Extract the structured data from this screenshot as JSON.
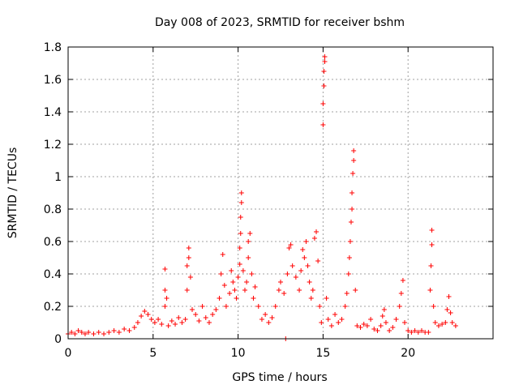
{
  "chart_data": {
    "type": "scatter",
    "title": "Day 008 of 2023, SRMTID for receiver bshm",
    "xlabel": "GPS time / hours",
    "ylabel": "SRMTID / TECUs",
    "xlim": [
      0,
      25
    ],
    "ylim": [
      0,
      1.8
    ],
    "xticks": [
      "0",
      "5",
      "10",
      "15",
      "20"
    ],
    "yticks": [
      "0",
      "0.2",
      "0.4",
      "0.6",
      "0.8",
      "1",
      "1.2",
      "1.4",
      "1.6",
      "1.8"
    ],
    "grid": true,
    "marker": "+",
    "color": "#ff0000",
    "series": [
      {
        "name": "SRMTID",
        "points": [
          [
            0.0,
            0.03
          ],
          [
            0.2,
            0.04
          ],
          [
            0.4,
            0.03
          ],
          [
            0.6,
            0.05
          ],
          [
            0.8,
            0.04
          ],
          [
            1.0,
            0.03
          ],
          [
            1.2,
            0.04
          ],
          [
            1.5,
            0.03
          ],
          [
            1.8,
            0.04
          ],
          [
            2.1,
            0.03
          ],
          [
            2.4,
            0.04
          ],
          [
            2.7,
            0.05
          ],
          [
            3.0,
            0.04
          ],
          [
            3.3,
            0.06
          ],
          [
            3.6,
            0.05
          ],
          [
            3.9,
            0.07
          ],
          [
            4.1,
            0.1
          ],
          [
            4.3,
            0.14
          ],
          [
            4.5,
            0.17
          ],
          [
            4.7,
            0.15
          ],
          [
            4.9,
            0.12
          ],
          [
            5.1,
            0.1
          ],
          [
            5.3,
            0.12
          ],
          [
            5.5,
            0.09
          ],
          [
            5.7,
            0.2
          ],
          [
            5.7,
            0.3
          ],
          [
            5.7,
            0.43
          ],
          [
            5.8,
            0.25
          ],
          [
            5.9,
            0.08
          ],
          [
            6.1,
            0.11
          ],
          [
            6.3,
            0.09
          ],
          [
            6.5,
            0.13
          ],
          [
            6.7,
            0.1
          ],
          [
            6.9,
            0.12
          ],
          [
            7.0,
            0.3
          ],
          [
            7.0,
            0.45
          ],
          [
            7.1,
            0.56
          ],
          [
            7.1,
            0.5
          ],
          [
            7.2,
            0.38
          ],
          [
            7.3,
            0.18
          ],
          [
            7.5,
            0.15
          ],
          [
            7.7,
            0.11
          ],
          [
            7.9,
            0.2
          ],
          [
            8.1,
            0.13
          ],
          [
            8.3,
            0.1
          ],
          [
            8.5,
            0.15
          ],
          [
            8.7,
            0.18
          ],
          [
            8.9,
            0.25
          ],
          [
            9.0,
            0.4
          ],
          [
            9.1,
            0.52
          ],
          [
            9.2,
            0.33
          ],
          [
            9.3,
            0.2
          ],
          [
            9.5,
            0.28
          ],
          [
            9.6,
            0.42
          ],
          [
            9.7,
            0.35
          ],
          [
            9.8,
            0.3
          ],
          [
            9.9,
            0.25
          ],
          [
            10.0,
            0.38
          ],
          [
            10.1,
            0.46
          ],
          [
            10.1,
            0.56
          ],
          [
            10.15,
            0.65
          ],
          [
            10.15,
            0.75
          ],
          [
            10.2,
            0.84
          ],
          [
            10.2,
            0.9
          ],
          [
            10.3,
            0.42
          ],
          [
            10.4,
            0.3
          ],
          [
            10.5,
            0.35
          ],
          [
            10.6,
            0.5
          ],
          [
            10.6,
            0.6
          ],
          [
            10.7,
            0.65
          ],
          [
            10.8,
            0.4
          ],
          [
            10.9,
            0.25
          ],
          [
            11.0,
            0.32
          ],
          [
            11.2,
            0.2
          ],
          [
            11.4,
            0.12
          ],
          [
            11.6,
            0.15
          ],
          [
            11.8,
            0.1
          ],
          [
            12.0,
            0.13
          ],
          [
            12.2,
            0.2
          ],
          [
            12.4,
            0.3
          ],
          [
            12.5,
            0.35
          ],
          [
            12.7,
            0.28
          ],
          [
            12.8,
            0.0
          ],
          [
            12.9,
            0.4
          ],
          [
            13.0,
            0.56
          ],
          [
            13.1,
            0.58
          ],
          [
            13.2,
            0.45
          ],
          [
            13.4,
            0.38
          ],
          [
            13.6,
            0.3
          ],
          [
            13.7,
            0.42
          ],
          [
            13.8,
            0.55
          ],
          [
            13.9,
            0.5
          ],
          [
            14.0,
            0.6
          ],
          [
            14.1,
            0.45
          ],
          [
            14.2,
            0.35
          ],
          [
            14.3,
            0.25
          ],
          [
            14.4,
            0.3
          ],
          [
            14.5,
            0.62
          ],
          [
            14.6,
            0.66
          ],
          [
            14.7,
            0.48
          ],
          [
            14.8,
            0.2
          ],
          [
            14.9,
            0.1
          ],
          [
            15.0,
            1.32
          ],
          [
            15.0,
            1.45
          ],
          [
            15.05,
            1.56
          ],
          [
            15.05,
            1.65
          ],
          [
            15.1,
            1.71
          ],
          [
            15.1,
            1.74
          ],
          [
            15.2,
            0.25
          ],
          [
            15.3,
            0.12
          ],
          [
            15.5,
            0.08
          ],
          [
            15.7,
            0.15
          ],
          [
            15.9,
            0.1
          ],
          [
            16.1,
            0.12
          ],
          [
            16.3,
            0.2
          ],
          [
            16.4,
            0.28
          ],
          [
            16.5,
            0.4
          ],
          [
            16.55,
            0.5
          ],
          [
            16.6,
            0.6
          ],
          [
            16.65,
            0.72
          ],
          [
            16.7,
            0.8
          ],
          [
            16.7,
            0.9
          ],
          [
            16.75,
            1.02
          ],
          [
            16.8,
            1.1
          ],
          [
            16.8,
            1.16
          ],
          [
            16.9,
            0.3
          ],
          [
            17.0,
            0.08
          ],
          [
            17.2,
            0.07
          ],
          [
            17.4,
            0.09
          ],
          [
            17.6,
            0.08
          ],
          [
            17.8,
            0.12
          ],
          [
            18.0,
            0.06
          ],
          [
            18.2,
            0.05
          ],
          [
            18.4,
            0.08
          ],
          [
            18.5,
            0.14
          ],
          [
            18.6,
            0.18
          ],
          [
            18.7,
            0.1
          ],
          [
            18.9,
            0.05
          ],
          [
            19.1,
            0.07
          ],
          [
            19.3,
            0.12
          ],
          [
            19.5,
            0.2
          ],
          [
            19.6,
            0.28
          ],
          [
            19.7,
            0.36
          ],
          [
            19.8,
            0.1
          ],
          [
            20.0,
            0.05
          ],
          [
            20.2,
            0.04
          ],
          [
            20.4,
            0.05
          ],
          [
            20.6,
            0.04
          ],
          [
            20.8,
            0.05
          ],
          [
            21.0,
            0.04
          ],
          [
            21.2,
            0.04
          ],
          [
            21.3,
            0.3
          ],
          [
            21.35,
            0.45
          ],
          [
            21.4,
            0.58
          ],
          [
            21.4,
            0.67
          ],
          [
            21.5,
            0.2
          ],
          [
            21.6,
            0.1
          ],
          [
            21.8,
            0.08
          ],
          [
            22.0,
            0.09
          ],
          [
            22.2,
            0.1
          ],
          [
            22.3,
            0.18
          ],
          [
            22.4,
            0.26
          ],
          [
            22.5,
            0.16
          ],
          [
            22.6,
            0.1
          ],
          [
            22.8,
            0.08
          ]
        ]
      }
    ]
  }
}
